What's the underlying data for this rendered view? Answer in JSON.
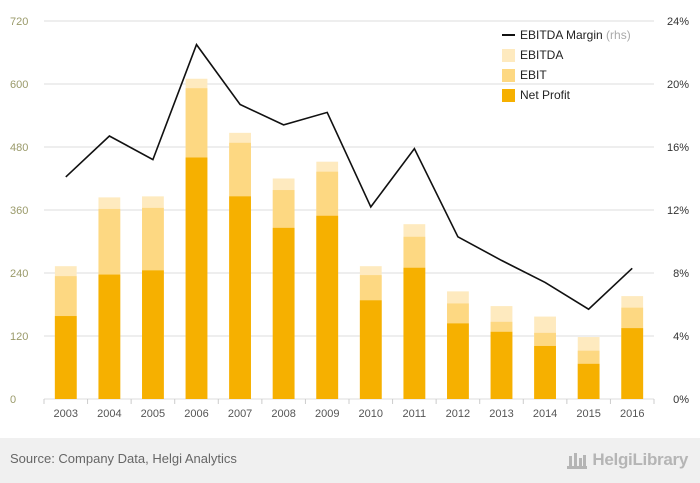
{
  "chart_data": {
    "type": "bar",
    "categories": [
      "2003",
      "2004",
      "2005",
      "2006",
      "2007",
      "2008",
      "2009",
      "2010",
      "2011",
      "2012",
      "2013",
      "2014",
      "2015",
      "2016"
    ],
    "series": [
      {
        "name": "Net Profit",
        "type": "bar",
        "axis": "left",
        "values": [
          158,
          237,
          245,
          460,
          386,
          326,
          349,
          188,
          250,
          144,
          128,
          101,
          67,
          135
        ]
      },
      {
        "name": "EBIT",
        "type": "bar",
        "axis": "left",
        "values": [
          234,
          362,
          364,
          592,
          488,
          398,
          433,
          236,
          309,
          182,
          147,
          126,
          92,
          174
        ]
      },
      {
        "name": "EBITDA",
        "type": "bar",
        "axis": "left",
        "values": [
          253,
          384,
          386,
          610,
          507,
          420,
          452,
          253,
          333,
          205,
          177,
          157,
          118,
          196
        ]
      },
      {
        "name": "EBITDA Margin",
        "legend_suffix": "(rhs)",
        "type": "line",
        "axis": "right",
        "values": [
          14.1,
          16.7,
          15.2,
          22.5,
          18.7,
          17.4,
          18.2,
          12.2,
          15.9,
          10.3,
          8.8,
          7.4,
          5.7,
          8.3
        ]
      }
    ],
    "y_left": {
      "ticks": [
        "0",
        "120",
        "240",
        "360",
        "480",
        "600",
        "720"
      ],
      "ylim": [
        0,
        720
      ]
    },
    "y_right": {
      "ticks": [
        "0%",
        "4%",
        "8%",
        "12%",
        "16%",
        "20%",
        "24%"
      ],
      "ylim": [
        0,
        24
      ]
    },
    "grid": true,
    "legend_position": "top-right",
    "colors": {
      "net_profit": "#f6b000",
      "ebit": "#fdd882",
      "ebitda": "#feeabf",
      "margin_line": "#111111",
      "grid": "#dcdcdc",
      "tick_text": "#9a9a6a",
      "x_tick_text": "#555555"
    }
  },
  "footer": {
    "source": "Source: Company Data, Helgi Analytics",
    "brand": "HelgiLibrary"
  }
}
